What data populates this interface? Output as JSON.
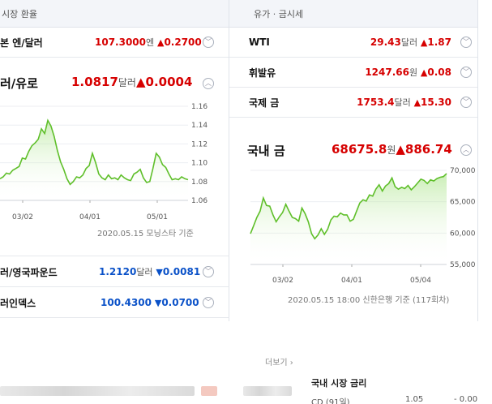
{
  "left": {
    "header": "시장 환율",
    "top_row": {
      "name": "본 엔/달러",
      "value": "107.3000",
      "unit": "엔",
      "change": "0.2700",
      "dir": "up"
    },
    "big": {
      "name": "러/유로",
      "value": "1.0817",
      "unit": "달러",
      "change": "0.0004",
      "dir": "up"
    },
    "rows": [
      {
        "name": "러/영국파운드",
        "value": "1.2120",
        "unit": "달러",
        "change": "0.0081",
        "dir": "down"
      },
      {
        "name": "러인덱스",
        "value": "100.4300",
        "unit": "",
        "change": "0.0700",
        "dir": "down"
      }
    ],
    "source": "2020.05.15 모닝스타 기준"
  },
  "right": {
    "header": "유가 · 금시세",
    "rows": [
      {
        "name": "WTI",
        "value": "29.43",
        "unit": "달러",
        "change": "1.87",
        "dir": "up"
      },
      {
        "name": "휘발유",
        "value": "1247.66",
        "unit": "원",
        "change": "0.08",
        "dir": "up"
      },
      {
        "name": "국제 금",
        "value": "1753.4",
        "unit": "달러",
        "change": "15.30",
        "dir": "up"
      }
    ],
    "big": {
      "name": "국내 금",
      "value": "68675.8",
      "unit": "원",
      "change": "886.74",
      "dir": "up"
    },
    "source": "2020.05.15 18:00 신한은행 기준 (117회차)"
  },
  "icons": {
    "up": "▲",
    "down": "▼",
    "chev_up": "︿",
    "chev_down": "﹀"
  },
  "chart_data": [
    {
      "type": "area",
      "yticks": [
        "1.16",
        "1.14",
        "1.12",
        "1.10",
        "1.08",
        "1.06"
      ],
      "xticks": [
        "03/02",
        "04/01",
        "05/01"
      ],
      "ylim": [
        1.06,
        1.16
      ],
      "values": [
        1.083,
        1.085,
        1.089,
        1.088,
        1.092,
        1.094,
        1.096,
        1.105,
        1.104,
        1.112,
        1.118,
        1.121,
        1.125,
        1.136,
        1.131,
        1.145,
        1.139,
        1.128,
        1.113,
        1.101,
        1.093,
        1.083,
        1.077,
        1.08,
        1.085,
        1.084,
        1.087,
        1.094,
        1.097,
        1.11,
        1.1,
        1.088,
        1.084,
        1.082,
        1.087,
        1.083,
        1.084,
        1.082,
        1.087,
        1.084,
        1.082,
        1.081,
        1.088,
        1.09,
        1.093,
        1.084,
        1.079,
        1.08,
        1.094,
        1.11,
        1.106,
        1.098,
        1.095,
        1.088,
        1.082,
        1.083,
        1.082,
        1.085,
        1.083,
        1.082
      ],
      "color": "#5fbf2a"
    },
    {
      "type": "area",
      "yticks": [
        "70,000",
        "65,000",
        "60,000",
        "55,000"
      ],
      "xticks": [
        "03/02",
        "04/01",
        "05/04"
      ],
      "ylim": [
        55000,
        70000
      ],
      "values": [
        59900,
        61200,
        62500,
        63500,
        65600,
        64400,
        64300,
        62900,
        61800,
        62600,
        63300,
        64600,
        63500,
        62500,
        62300,
        61900,
        64000,
        63100,
        61800,
        59900,
        59100,
        59700,
        60700,
        59800,
        60600,
        62100,
        62700,
        62600,
        63200,
        62900,
        62900,
        61900,
        62200,
        63500,
        64800,
        65300,
        65100,
        66100,
        65900,
        67000,
        67700,
        66700,
        67500,
        67900,
        68800,
        67400,
        67000,
        67300,
        67100,
        67600,
        66900,
        67400,
        68000,
        68600,
        68400,
        67900,
        68500,
        68300,
        68700,
        68900,
        69000,
        69500
      ],
      "color": "#5fbf2a"
    }
  ]
}
